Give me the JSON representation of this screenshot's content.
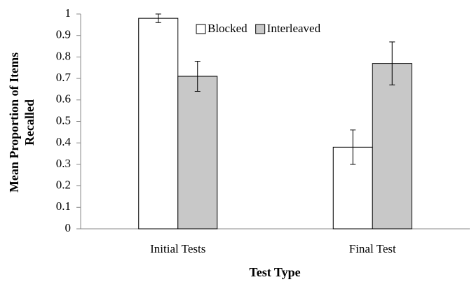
{
  "chart_data": {
    "type": "bar",
    "xlabel": "Test Type",
    "ylabel": [
      "Mean Proportion of Items",
      "Recalled"
    ],
    "categories": [
      "Initial Tests",
      "Final Test"
    ],
    "series": [
      {
        "name": "Blocked",
        "color": "#ffffff",
        "values": [
          0.98,
          0.38
        ],
        "errors": [
          0.02,
          0.08
        ]
      },
      {
        "name": "Interleaved",
        "color": "#c8c8c8",
        "values": [
          0.71,
          0.77
        ],
        "errors": [
          0.07,
          0.1
        ]
      }
    ],
    "ylim": [
      0,
      1
    ],
    "yticks": [
      0,
      0.1,
      0.2,
      0.3,
      0.4,
      0.5,
      0.6,
      0.7,
      0.8,
      0.9,
      1
    ],
    "grid": false,
    "legend": "top"
  }
}
